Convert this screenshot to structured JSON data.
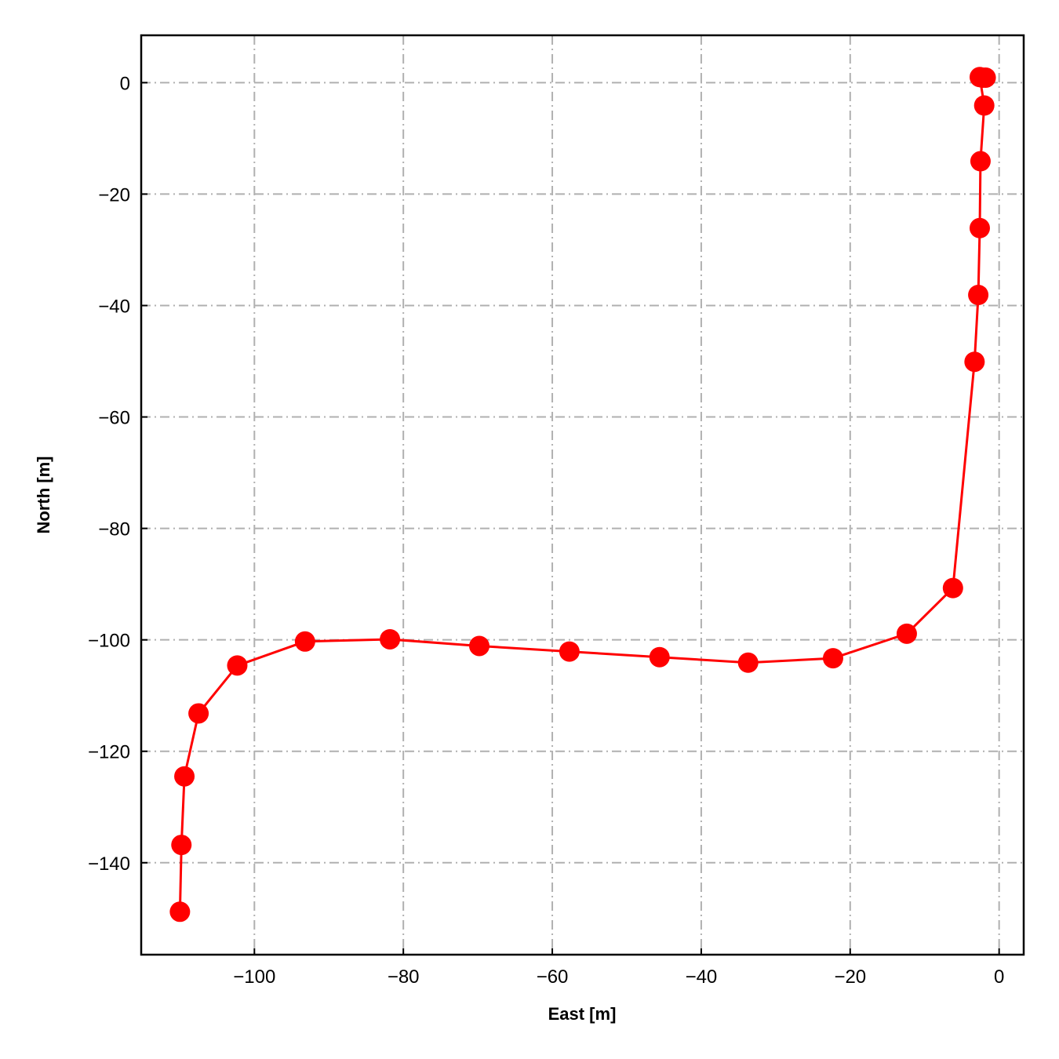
{
  "chart_data": {
    "type": "line",
    "xlabel": "East [m]",
    "ylabel": "North [m]",
    "xlim": [
      -115.2,
      3.3
    ],
    "ylim": [
      -156.5,
      8.5
    ],
    "xticks": [
      -100,
      -80,
      -60,
      -40,
      -20,
      0
    ],
    "yticks": [
      0,
      -20,
      -40,
      -60,
      -80,
      -100,
      -120,
      -140
    ],
    "xtick_labels": [
      "−100",
      "−80",
      "−60",
      "−40",
      "−20",
      "0"
    ],
    "ytick_labels": [
      "0",
      "−20",
      "−40",
      "−60",
      "−80",
      "−100",
      "−120",
      "−140"
    ],
    "grid": true,
    "series": [
      {
        "color": "#ff0000",
        "marker": "circle",
        "x": [
          -1.8,
          -2.2,
          -2.6,
          -2.0,
          -2.5,
          -2.6,
          -2.8,
          -3.3,
          -6.2,
          -12.4,
          -22.3,
          -33.7,
          -45.6,
          -57.7,
          -69.8,
          -81.8,
          -93.2,
          -102.3,
          -107.5,
          -109.4,
          -109.8,
          -110.0
        ],
        "y": [
          0.9,
          0.9,
          1.0,
          -4.1,
          -14.1,
          -26.1,
          -38.1,
          -50.1,
          -90.7,
          -98.9,
          -103.3,
          -104.1,
          -103.1,
          -102.1,
          -101.1,
          -99.9,
          -100.3,
          -104.6,
          -113.2,
          -124.5,
          -136.8,
          -148.8
        ]
      }
    ]
  }
}
